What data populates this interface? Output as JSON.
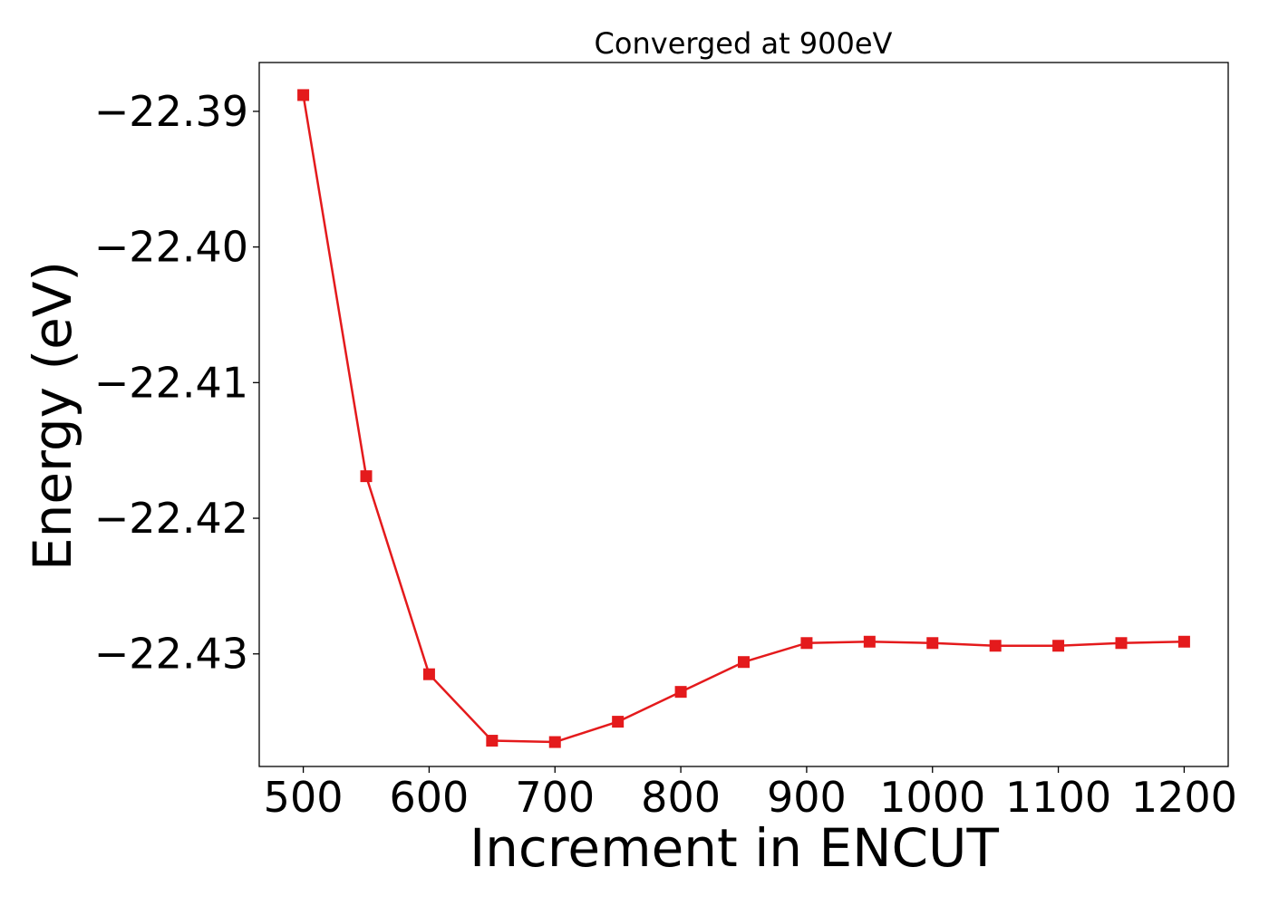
{
  "chart_data": {
    "type": "line",
    "title": "Converged at 900eV",
    "xlabel": "Increment in ENCUT",
    "ylabel": "Energy (eV)",
    "xlim": [
      465,
      1235
    ],
    "ylim": [
      -22.4383,
      -22.3864
    ],
    "x_ticks": [
      500,
      600,
      700,
      800,
      900,
      1000,
      1100,
      1200
    ],
    "x_tick_labels": [
      "500",
      "600",
      "700",
      "800",
      "900",
      "1000",
      "1100",
      "1200"
    ],
    "y_ticks": [
      -22.39,
      -22.4,
      -22.41,
      -22.42,
      -22.43
    ],
    "y_tick_labels": [
      "−22.39",
      "−22.40",
      "−22.41",
      "−22.42",
      "−22.43"
    ],
    "grid": false,
    "series": [
      {
        "name": "",
        "color": "#e41a1c",
        "marker": "square",
        "x": [
          500,
          550,
          600,
          650,
          700,
          750,
          800,
          850,
          900,
          950,
          1000,
          1050,
          1100,
          1150,
          1200
        ],
        "y": [
          -22.3888,
          -22.4169,
          -22.4315,
          -22.4364,
          -22.4365,
          -22.435,
          -22.4328,
          -22.4306,
          -22.4292,
          -22.4291,
          -22.4292,
          -22.4294,
          -22.4294,
          -22.4292,
          -22.4291
        ]
      }
    ]
  }
}
